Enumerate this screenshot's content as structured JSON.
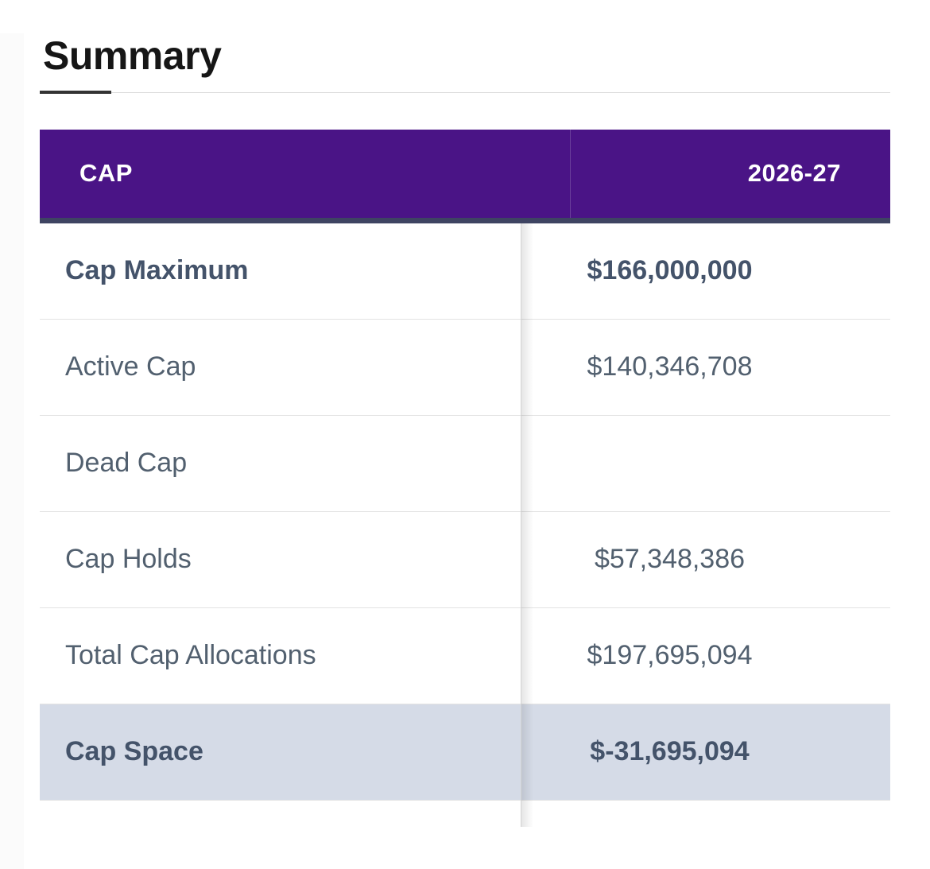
{
  "page": {
    "title": "Summary"
  },
  "table": {
    "header": {
      "col1": "CAP",
      "col2": "2026-27"
    },
    "rows": [
      {
        "label": "Cap Maximum",
        "value": "$166,000,000",
        "bold": true,
        "highlight": false
      },
      {
        "label": "Active Cap",
        "value": "$140,346,708",
        "bold": false,
        "highlight": false
      },
      {
        "label": "Dead Cap",
        "value": "",
        "bold": false,
        "highlight": false
      },
      {
        "label": "Cap Holds",
        "value": "$57,348,386",
        "bold": false,
        "highlight": false
      },
      {
        "label": "Total Cap Allocations",
        "value": "$197,695,094",
        "bold": false,
        "highlight": false
      },
      {
        "label": "Cap Space",
        "value": "$-31,695,094",
        "bold": true,
        "highlight": true
      }
    ],
    "colors": {
      "header_bg": "#4a1486",
      "header_underline": "#3e4462",
      "highlight_bg": "#d5dbe7",
      "text": "#52606f",
      "bold_text": "#44536a",
      "row_border": "#e3e3e3",
      "rule_line": "#dadada"
    }
  }
}
